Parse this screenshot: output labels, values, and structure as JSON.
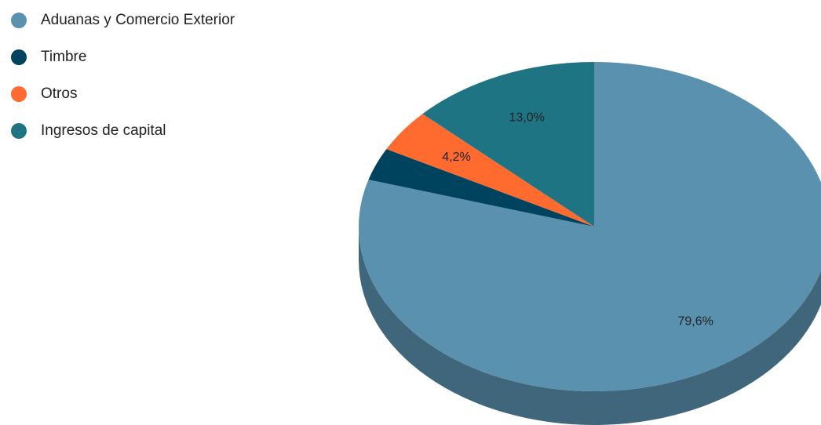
{
  "chart_data": {
    "type": "pie",
    "style": "3d",
    "categories": [
      "Aduanas y Comercio Exterior",
      "Timbre",
      "Otros",
      "Ingresos de capital"
    ],
    "values": [
      79.6,
      3.2,
      4.2,
      13.0
    ],
    "value_labels": [
      "79,6%",
      null,
      "4,2%",
      "13,0%"
    ],
    "colors": [
      "#5a91ae",
      "#00435f",
      "#ff6b2f",
      "#1e7483"
    ],
    "legend": "top-left"
  }
}
